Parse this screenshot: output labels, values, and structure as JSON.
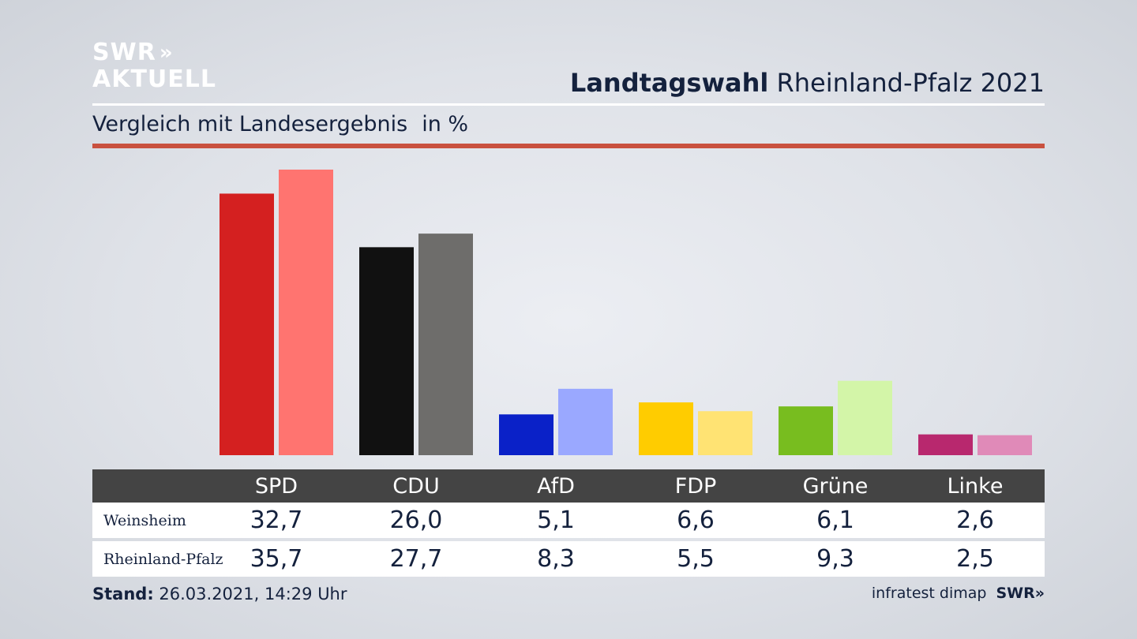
{
  "brand": {
    "line1": "SWR",
    "line2": "AKTUELL",
    "chevrons": "»"
  },
  "headline": {
    "bold": "Landtagswahl",
    "rest": "Rheinland-Pfalz 2021"
  },
  "subtitle": {
    "text": "Vergleich mit Landesergebnis",
    "unit": "in %"
  },
  "chart_data": {
    "type": "bar",
    "categories": [
      "SPD",
      "CDU",
      "AfD",
      "FDP",
      "Grüne",
      "Linke"
    ],
    "series": [
      {
        "name": "Weinsheim",
        "values": [
          32.7,
          26.0,
          5.1,
          6.6,
          6.1,
          2.6
        ],
        "colors": [
          "#d42020",
          "#111111",
          "#0a21c8",
          "#ffcc00",
          "#78bd1f",
          "#b8286e"
        ]
      },
      {
        "name": "Rheinland-Pfalz",
        "values": [
          35.7,
          27.7,
          8.3,
          5.5,
          9.3,
          2.5
        ],
        "colors": [
          "#ff7470",
          "#6e6d6b",
          "#9aa8ff",
          "#ffe373",
          "#d3f5a8",
          "#e08ab8"
        ]
      }
    ],
    "ylim": [
      0,
      35.7
    ],
    "grid": false,
    "legend": "none"
  },
  "table": {
    "headers": [
      "SPD",
      "CDU",
      "AfD",
      "FDP",
      "Grüne",
      "Linke"
    ],
    "rows": [
      {
        "label": "Weinsheim",
        "values": [
          "32,7",
          "26,0",
          "5,1",
          "6,6",
          "6,1",
          "2,6"
        ]
      },
      {
        "label": "Rheinland-Pfalz",
        "values": [
          "35,7",
          "27,7",
          "8,3",
          "5,5",
          "9,3",
          "2,5"
        ]
      }
    ]
  },
  "footer": {
    "stand_label": "Stand:",
    "stand_value": "26.03.2021, 14:29 Uhr",
    "source": "infratest dimap",
    "brand": "SWR»"
  }
}
